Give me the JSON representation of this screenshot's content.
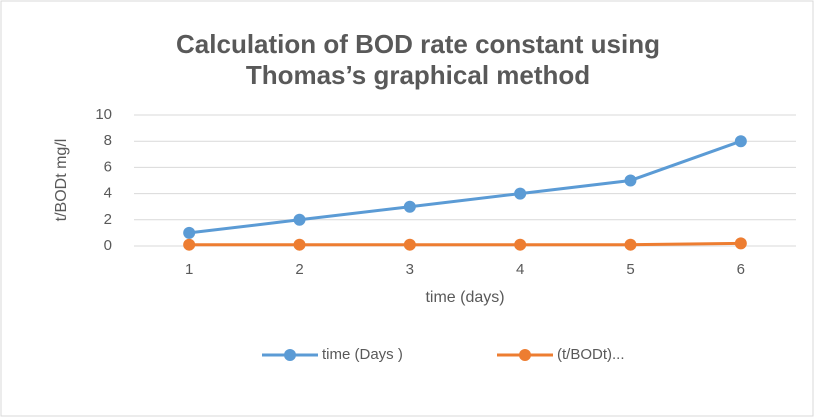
{
  "chart_data": {
    "type": "line",
    "title": [
      "Calculation of BOD rate constant using",
      "Thomas’s graphical method"
    ],
    "x_label": "time (days)",
    "y_label": "t/BODt mg/l",
    "categories": [
      "1",
      "2",
      "3",
      "4",
      "5",
      "6"
    ],
    "series": [
      {
        "name": "time (Days )",
        "color": "#5b9bd5",
        "values": [
          1,
          2,
          3,
          4,
          5,
          8
        ]
      },
      {
        "name": "(t/BODt)...",
        "color": "#ed7d31",
        "values": [
          0.1,
          0.1,
          0.1,
          0.1,
          0.1,
          0.2
        ]
      }
    ],
    "ylim": [
      0,
      10
    ],
    "yticks": [
      0,
      2,
      4,
      6,
      8,
      10
    ],
    "grid": true,
    "legend": "bottom"
  }
}
